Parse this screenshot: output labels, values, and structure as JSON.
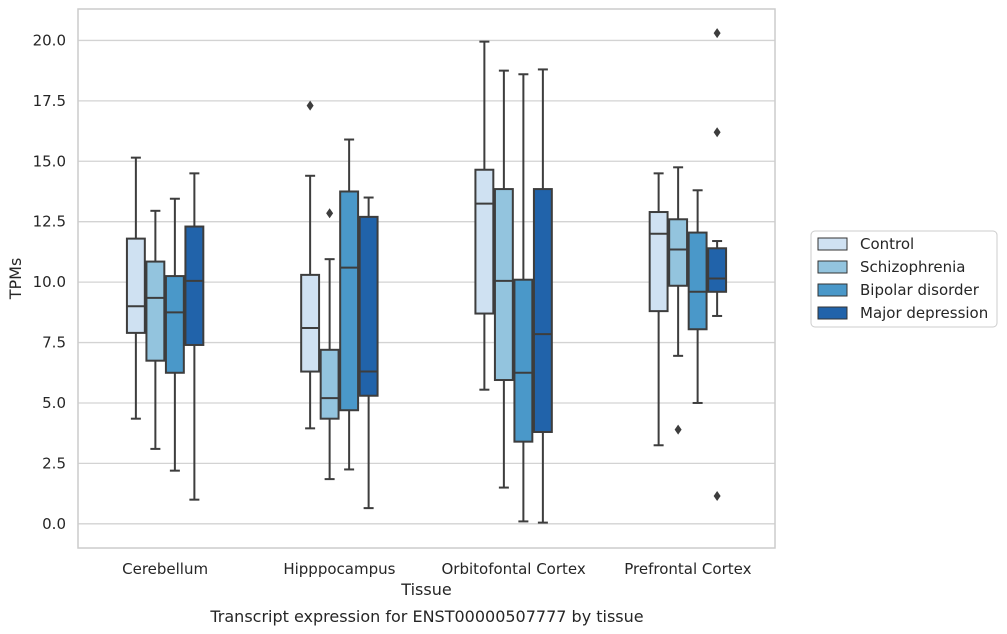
{
  "caption": "Transcript expression for ENST00000507777 by tissue",
  "colors": {
    "Control": "#cfe1f2",
    "Schizophrenia": "#93c4de",
    "Bipolar disorder": "#4a98c9",
    "Major depression": "#2163aa",
    "box_edge": "#3d3d3d",
    "grid": "#d3d3d3",
    "frame": "#cccccc"
  },
  "chart_data": {
    "type": "boxplot",
    "xlabel": "Tissue",
    "ylabel": "TPMs",
    "ylim": [
      -1.0,
      21.3
    ],
    "yticks": [
      0.0,
      2.5,
      5.0,
      7.5,
      10.0,
      12.5,
      15.0,
      17.5,
      20.0
    ],
    "ytick_labels": [
      "0.0",
      "2.5",
      "5.0",
      "7.5",
      "10.0",
      "12.5",
      "15.0",
      "17.5",
      "20.0"
    ],
    "grid": "horizontal",
    "legend_position": "right",
    "categories": [
      "Cerebellum",
      "Hipppocampus",
      "Orbitofontal Cortex",
      "Prefrontal Cortex"
    ],
    "series": [
      {
        "name": "Control",
        "boxes": [
          {
            "whislo": 4.35,
            "q1": 7.9,
            "med": 9.0,
            "q3": 11.8,
            "whishi": 15.15,
            "fliers": []
          },
          {
            "whislo": 3.95,
            "q1": 6.3,
            "med": 8.1,
            "q3": 10.3,
            "whishi": 14.4,
            "fliers": [
              17.3
            ]
          },
          {
            "whislo": 5.55,
            "q1": 8.7,
            "med": 13.25,
            "q3": 14.65,
            "whishi": 19.95,
            "fliers": []
          },
          {
            "whislo": 3.25,
            "q1": 8.8,
            "med": 12.0,
            "q3": 12.9,
            "whishi": 14.5,
            "fliers": []
          }
        ]
      },
      {
        "name": "Schizophrenia",
        "boxes": [
          {
            "whislo": 3.1,
            "q1": 6.75,
            "med": 9.35,
            "q3": 10.85,
            "whishi": 12.95,
            "fliers": []
          },
          {
            "whislo": 1.85,
            "q1": 4.35,
            "med": 5.2,
            "q3": 7.2,
            "whishi": 10.95,
            "fliers": [
              12.85
            ]
          },
          {
            "whislo": 1.5,
            "q1": 5.95,
            "med": 10.05,
            "q3": 13.85,
            "whishi": 18.75,
            "fliers": []
          },
          {
            "whislo": 6.95,
            "q1": 9.85,
            "med": 11.35,
            "q3": 12.6,
            "whishi": 14.75,
            "fliers": [
              3.9
            ]
          }
        ]
      },
      {
        "name": "Bipolar disorder",
        "boxes": [
          {
            "whislo": 2.2,
            "q1": 6.25,
            "med": 8.75,
            "q3": 10.25,
            "whishi": 13.45,
            "fliers": []
          },
          {
            "whislo": 2.25,
            "q1": 4.7,
            "med": 10.6,
            "q3": 13.75,
            "whishi": 15.9,
            "fliers": []
          },
          {
            "whislo": 0.1,
            "q1": 3.4,
            "med": 6.25,
            "q3": 10.1,
            "whishi": 18.6,
            "fliers": []
          },
          {
            "whislo": 5.0,
            "q1": 8.05,
            "med": 9.6,
            "q3": 12.05,
            "whishi": 13.8,
            "fliers": []
          }
        ]
      },
      {
        "name": "Major depression",
        "boxes": [
          {
            "whislo": 1.0,
            "q1": 7.4,
            "med": 10.05,
            "q3": 12.3,
            "whishi": 14.5,
            "fliers": []
          },
          {
            "whislo": 0.65,
            "q1": 5.3,
            "med": 6.3,
            "q3": 12.7,
            "whishi": 13.5,
            "fliers": []
          },
          {
            "whislo": 0.05,
            "q1": 3.8,
            "med": 7.85,
            "q3": 13.85,
            "whishi": 18.8,
            "fliers": []
          },
          {
            "whislo": 8.6,
            "q1": 9.6,
            "med": 10.15,
            "q3": 11.4,
            "whishi": 11.7,
            "fliers": [
              20.3,
              16.2,
              1.15
            ]
          }
        ]
      }
    ]
  }
}
